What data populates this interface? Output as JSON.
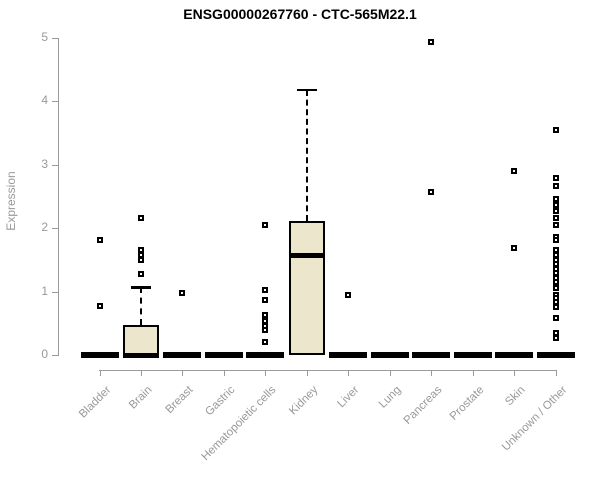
{
  "chart_data": {
    "type": "boxplot",
    "title": "ENSG00000267760 - CTC-565M22.1",
    "ylabel": "Expression",
    "xlabel": "",
    "ylim": [
      0,
      5
    ],
    "yticks": [
      0,
      1,
      2,
      3,
      4,
      5
    ],
    "grid": false,
    "legend": "none",
    "box_fill_color": "#ece7cc",
    "box_border_color": "#000000",
    "axis_color": "#9a9a9a",
    "tick_label_color": "#999999",
    "categories": [
      "Bladder",
      "Brain",
      "Breast",
      "Gastric",
      "Hematopoietic cells",
      "Kidney",
      "Liver",
      "Lung",
      "Pancreas",
      "Prostate",
      "Skin",
      "Unknown / Other"
    ],
    "boxes": [
      {
        "category": "Bladder",
        "q1": 0,
        "median": 0,
        "q3": 0,
        "whisker_low": 0,
        "whisker_high": 0,
        "outliers": [
          1.81,
          0.77
        ]
      },
      {
        "category": "Brain",
        "q1": 0,
        "median": 0,
        "q3": 0.48,
        "whisker_low": 0,
        "whisker_high": 1.07,
        "outliers": [
          2.15,
          1.66,
          1.57,
          1.5,
          1.27
        ]
      },
      {
        "category": "Breast",
        "q1": 0,
        "median": 0,
        "q3": 0,
        "whisker_low": 0,
        "whisker_high": 0,
        "outliers": [
          0.98
        ]
      },
      {
        "category": "Gastric",
        "q1": 0,
        "median": 0,
        "q3": 0,
        "whisker_low": 0,
        "whisker_high": 0,
        "outliers": []
      },
      {
        "category": "Hematopoietic cells",
        "q1": 0,
        "median": 0,
        "q3": 0,
        "whisker_low": 0,
        "whisker_high": 0,
        "outliers": [
          2.05,
          1.02,
          0.86,
          0.63,
          0.53,
          0.46,
          0.4,
          0.21
        ]
      },
      {
        "category": "Kidney",
        "q1": 0,
        "median": 1.56,
        "q3": 2.11,
        "whisker_low": 0,
        "whisker_high": 4.18,
        "outliers": []
      },
      {
        "category": "Liver",
        "q1": 0,
        "median": 0,
        "q3": 0,
        "whisker_low": 0,
        "whisker_high": 0,
        "outliers": [
          0.94
        ]
      },
      {
        "category": "Lung",
        "q1": 0,
        "median": 0,
        "q3": 0,
        "whisker_low": 0,
        "whisker_high": 0,
        "outliers": []
      },
      {
        "category": "Pancreas",
        "q1": 0,
        "median": 0,
        "q3": 0,
        "whisker_low": 0,
        "whisker_high": 0,
        "outliers": [
          4.93,
          2.56
        ]
      },
      {
        "category": "Prostate",
        "q1": 0,
        "median": 0,
        "q3": 0,
        "whisker_low": 0,
        "whisker_high": 0,
        "outliers": []
      },
      {
        "category": "Skin",
        "q1": 0,
        "median": 0,
        "q3": 0,
        "whisker_low": 0,
        "whisker_high": 0,
        "outliers": [
          2.9,
          1.68
        ]
      },
      {
        "category": "Unknown / Other",
        "q1": 0,
        "median": 0,
        "q3": 0,
        "whisker_low": 0,
        "whisker_high": 0,
        "outliers": [
          3.55,
          2.79,
          2.66,
          2.45,
          2.36,
          2.26,
          2.16,
          2.05,
          1.86,
          1.81,
          1.65,
          1.57,
          1.5,
          1.43,
          1.36,
          1.29,
          1.22,
          1.15,
          1.05,
          0.94,
          0.89,
          0.83,
          0.76,
          0.58,
          0.34,
          0.27
        ]
      }
    ]
  }
}
